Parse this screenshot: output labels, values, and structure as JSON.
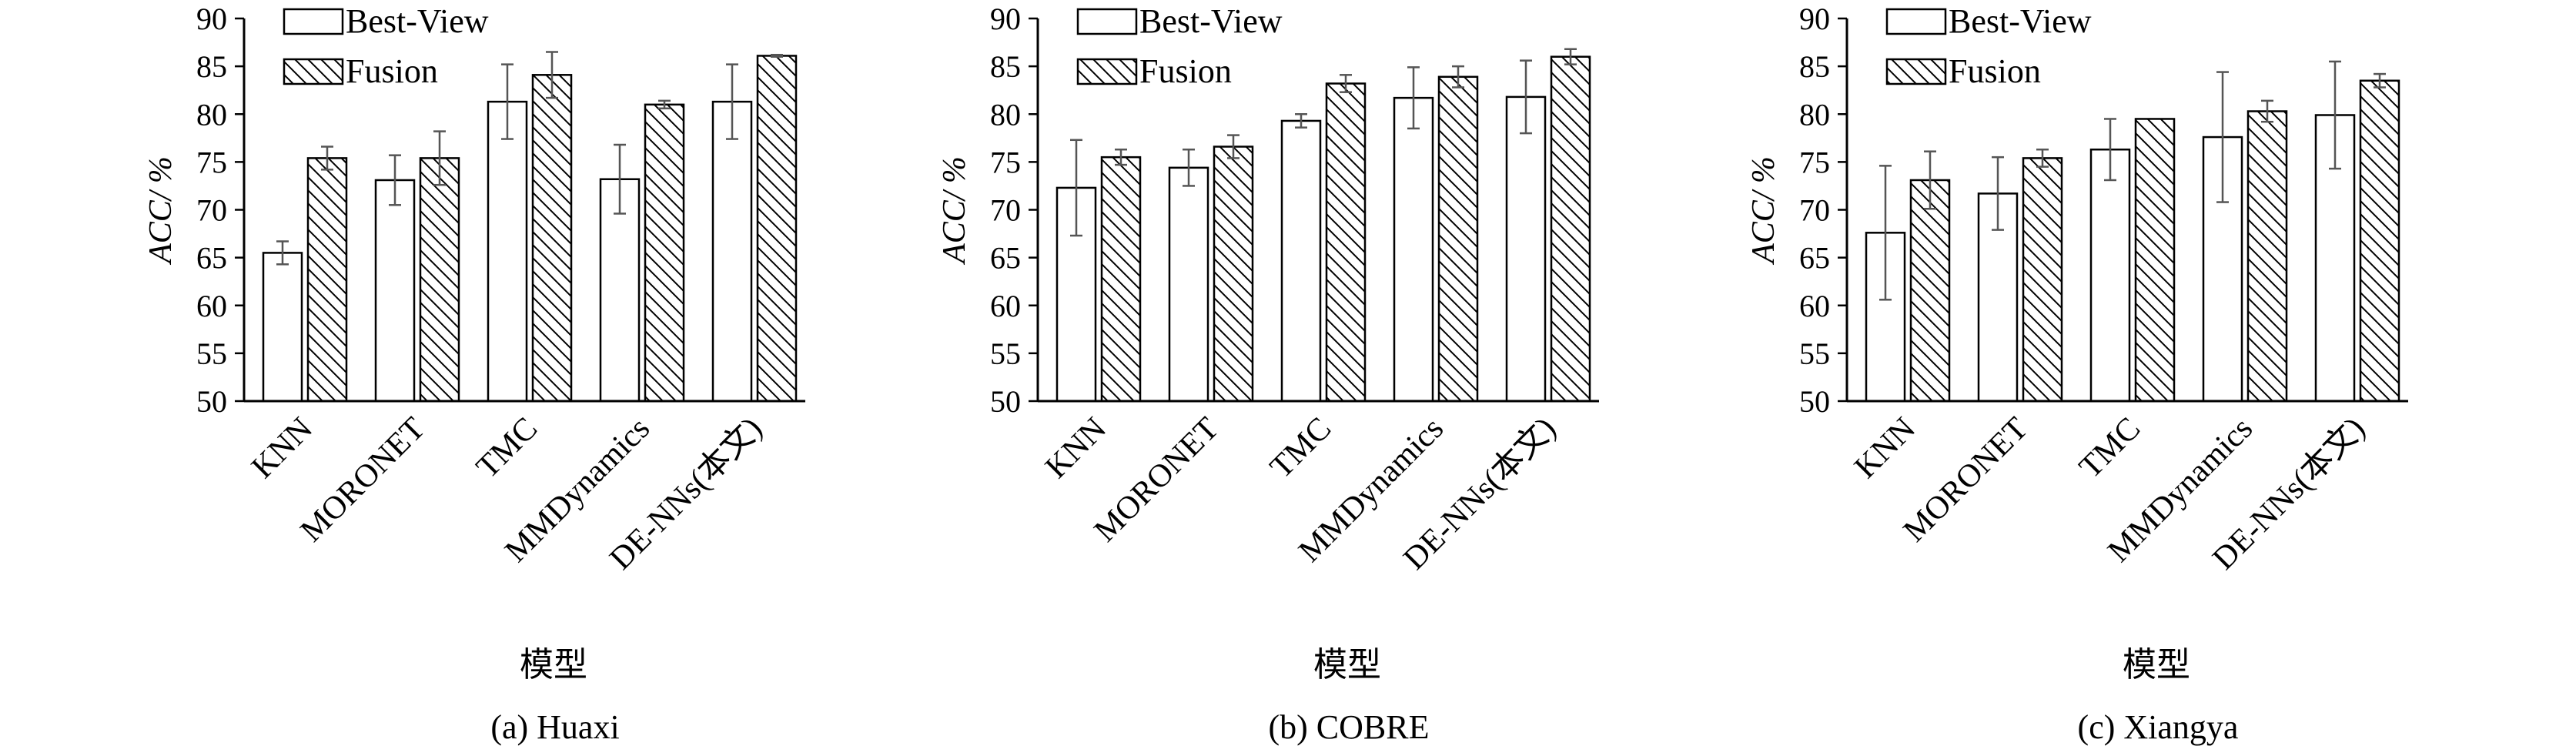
{
  "chart_data": [
    {
      "type": "bar",
      "caption": "(a) Huaxi",
      "ylabel": "ACC/ %",
      "xlabel": "模型",
      "ylim": [
        50,
        90
      ],
      "yticks": [
        50,
        55,
        60,
        65,
        70,
        75,
        80,
        85,
        90
      ],
      "categories": [
        "KNN",
        "MORONET",
        "TMC",
        "MMDynamics",
        "DE-NNs(本文)"
      ],
      "legend_position": "top-left",
      "series": [
        {
          "name": "Best-View",
          "pattern": "plain",
          "values": [
            65.5,
            73.1,
            81.3,
            73.2,
            81.3
          ],
          "errors": [
            1.2,
            2.6,
            3.9,
            3.6,
            3.9
          ]
        },
        {
          "name": "Fusion",
          "pattern": "hatched",
          "values": [
            75.4,
            75.4,
            84.1,
            81.0,
            86.1
          ],
          "errors": [
            1.2,
            2.8,
            2.4,
            0.4,
            0.1
          ]
        }
      ]
    },
    {
      "type": "bar",
      "caption": "(b) COBRE",
      "ylabel": "ACC/ %",
      "xlabel": "模型",
      "ylim": [
        50,
        90
      ],
      "yticks": [
        50,
        55,
        60,
        65,
        70,
        75,
        80,
        85,
        90
      ],
      "categories": [
        "KNN",
        "MORONET",
        "TMC",
        "MMDynamics",
        "DE-NNs(本文)"
      ],
      "legend_position": "top-left",
      "series": [
        {
          "name": "Best-View",
          "pattern": "plain",
          "values": [
            72.3,
            74.4,
            79.3,
            81.7,
            81.8
          ],
          "errors": [
            5.0,
            1.9,
            0.7,
            3.2,
            3.8
          ]
        },
        {
          "name": "Fusion",
          "pattern": "hatched",
          "values": [
            75.5,
            76.6,
            83.2,
            83.9,
            86.0
          ],
          "errors": [
            0.8,
            1.2,
            0.9,
            1.1,
            0.8
          ]
        }
      ]
    },
    {
      "type": "bar",
      "caption": "(c) Xiangya",
      "ylabel": "ACC/ %",
      "xlabel": "模型",
      "ylim": [
        50,
        90
      ],
      "yticks": [
        50,
        55,
        60,
        65,
        70,
        75,
        80,
        85,
        90
      ],
      "categories": [
        "KNN",
        "MORONET",
        "TMC",
        "MMDynamics",
        "DE-NNs(本文)"
      ],
      "legend_position": "top-left",
      "series": [
        {
          "name": "Best-View",
          "pattern": "plain",
          "values": [
            67.6,
            71.7,
            76.3,
            77.6,
            79.9
          ],
          "errors": [
            7.0,
            3.8,
            3.2,
            6.8,
            5.6
          ]
        },
        {
          "name": "Fusion",
          "pattern": "hatched",
          "values": [
            73.1,
            75.4,
            79.5,
            80.3,
            83.5
          ],
          "errors": [
            3.0,
            0.9,
            0.0,
            1.1,
            0.7
          ]
        }
      ]
    }
  ]
}
